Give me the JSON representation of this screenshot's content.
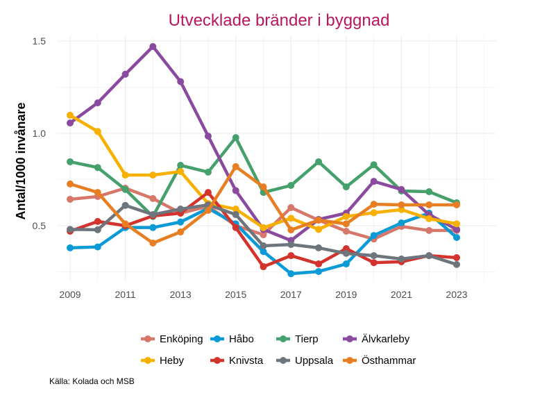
{
  "chart_data": {
    "type": "line",
    "title": "Utvecklade bränder i byggnad",
    "xlabel": "",
    "ylabel": "Antal/1000 invånare",
    "caption": "Källa: Kolada och MSB",
    "x": [
      2009,
      2010,
      2011,
      2012,
      2013,
      2014,
      2015,
      2016,
      2017,
      2018,
      2019,
      2020,
      2021,
      2022,
      2023
    ],
    "x_ticks": [
      "2009",
      "2011",
      "2013",
      "2015",
      "2017",
      "2019",
      "2021",
      "2023"
    ],
    "y_ticks": [
      "0.5",
      "1.0",
      "1.5"
    ],
    "xlim": [
      2008.5,
      2024.9
    ],
    "ylim": [
      0.2,
      1.53
    ],
    "grid": true,
    "legend_position": "bottom",
    "title_color": "#b8175f",
    "series": [
      {
        "name": "Enköping",
        "color": "#d6776a",
        "values": [
          0.643,
          0.658,
          0.703,
          0.647,
          0.568,
          0.605,
          0.5,
          0.451,
          0.598,
          0.53,
          0.47,
          0.428,
          0.496,
          0.474,
          0.474
        ]
      },
      {
        "name": "Håbo",
        "color": "#0a9ad6",
        "values": [
          0.38,
          0.385,
          0.49,
          0.49,
          0.52,
          0.594,
          0.51,
          0.36,
          0.24,
          0.252,
          0.293,
          0.447,
          0.515,
          0.568,
          0.436
        ]
      },
      {
        "name": "Tierp",
        "color": "#45a06c",
        "values": [
          0.846,
          0.815,
          0.696,
          0.55,
          0.827,
          0.79,
          0.977,
          0.68,
          0.718,
          0.846,
          0.71,
          0.83,
          0.688,
          0.684,
          0.624
        ]
      },
      {
        "name": "Älvkarleby",
        "color": "#8a4a9e",
        "values": [
          1.056,
          1.165,
          1.32,
          1.47,
          1.28,
          0.985,
          0.69,
          0.48,
          0.42,
          0.534,
          0.568,
          0.74,
          0.696,
          0.56,
          0.48
        ]
      },
      {
        "name": "Heby",
        "color": "#f7b000",
        "values": [
          1.098,
          1.01,
          0.774,
          0.774,
          0.793,
          0.62,
          0.59,
          0.489,
          0.54,
          0.48,
          0.55,
          0.57,
          0.587,
          0.538,
          0.51
        ]
      },
      {
        "name": "Knivsta",
        "color": "#d3332d",
        "values": [
          0.47,
          0.523,
          0.5,
          0.553,
          0.568,
          0.68,
          0.49,
          0.278,
          0.338,
          0.293,
          0.376,
          0.3,
          0.305,
          0.338,
          0.327
        ]
      },
      {
        "name": "Uppsala",
        "color": "#6e757c",
        "values": [
          0.48,
          0.478,
          0.61,
          0.56,
          0.59,
          0.613,
          0.56,
          0.391,
          0.398,
          0.38,
          0.35,
          0.338,
          0.32,
          0.338,
          0.29
        ]
      },
      {
        "name": "Östhammar",
        "color": "#e77f22",
        "values": [
          0.726,
          0.68,
          0.51,
          0.406,
          0.466,
          0.583,
          0.82,
          0.71,
          0.477,
          0.53,
          0.51,
          0.616,
          0.613,
          0.613,
          0.613
        ]
      }
    ]
  }
}
